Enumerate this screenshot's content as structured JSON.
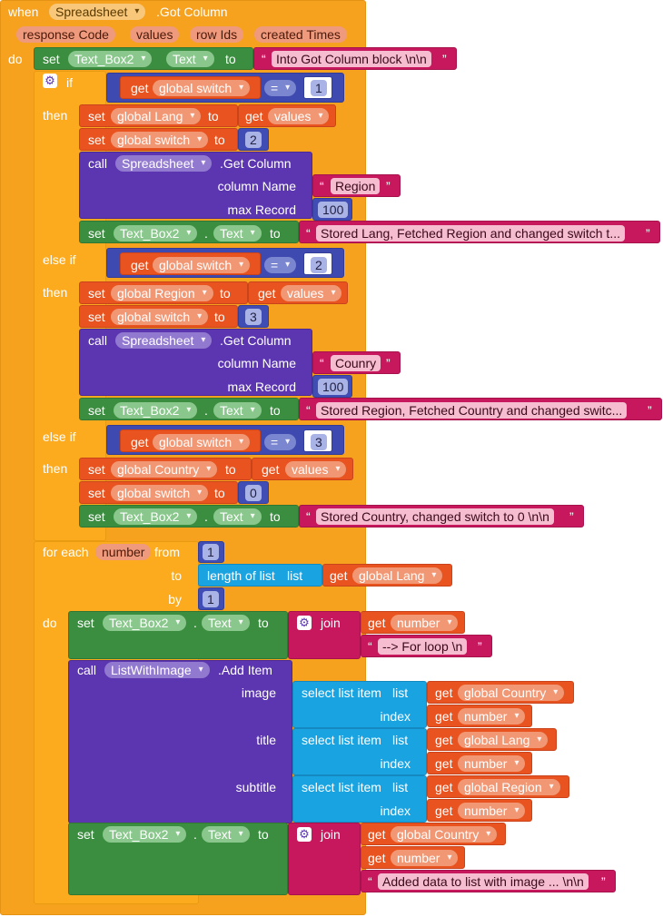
{
  "event": {
    "when": "when",
    "component": "Spreadsheet",
    "event_name": ".Got Column",
    "params": [
      "response Code",
      "values",
      "row Ids",
      "created Times"
    ],
    "do": "do"
  },
  "kw": {
    "set": "set",
    "to": "to",
    "get": "get",
    "call": "call",
    "if": "if",
    "then": "then",
    "else_if": "else if",
    "for_each": "for each",
    "from": "from",
    "by": "by",
    "do": "do",
    "join": "join",
    "dot": ".",
    "eq": "=",
    "column_name": "column Name",
    "max_record": "max Record",
    "length_of_list": "length of list",
    "list": "list",
    "select_list_item": "select list item",
    "index": "index",
    "image": "image",
    "title": "title",
    "subtitle": "subtitle",
    "get_column": ".Get Column",
    "add_item": ".Add Item",
    "quote_l": "“",
    "quote_r": "”"
  },
  "components": {
    "textbox": "Text_Box2",
    "text_prop": "Text",
    "spreadsheet": "Spreadsheet",
    "list_with_image": "ListWithImage"
  },
  "vars": {
    "switch": "global switch",
    "lang": "global Lang",
    "region": "global Region",
    "country": "global Country",
    "values": "values",
    "number": "number"
  },
  "strings": {
    "into": "Into Got Column block \\n\\n",
    "region": "Region",
    "stored_lang": "Stored Lang, Fetched Region and changed switch t...",
    "country": "Counry",
    "stored_region": "Stored Region, Fetched Country and changed switc...",
    "stored_country": "Stored Country, changed switch to 0 \\n\\n",
    "for_loop": "--> For loop \\n",
    "added": "Added data to list with image ... \\n\\n"
  },
  "numbers": {
    "one": "1",
    "two": "2",
    "three": "3",
    "zero": "0",
    "hundred": "100"
  }
}
